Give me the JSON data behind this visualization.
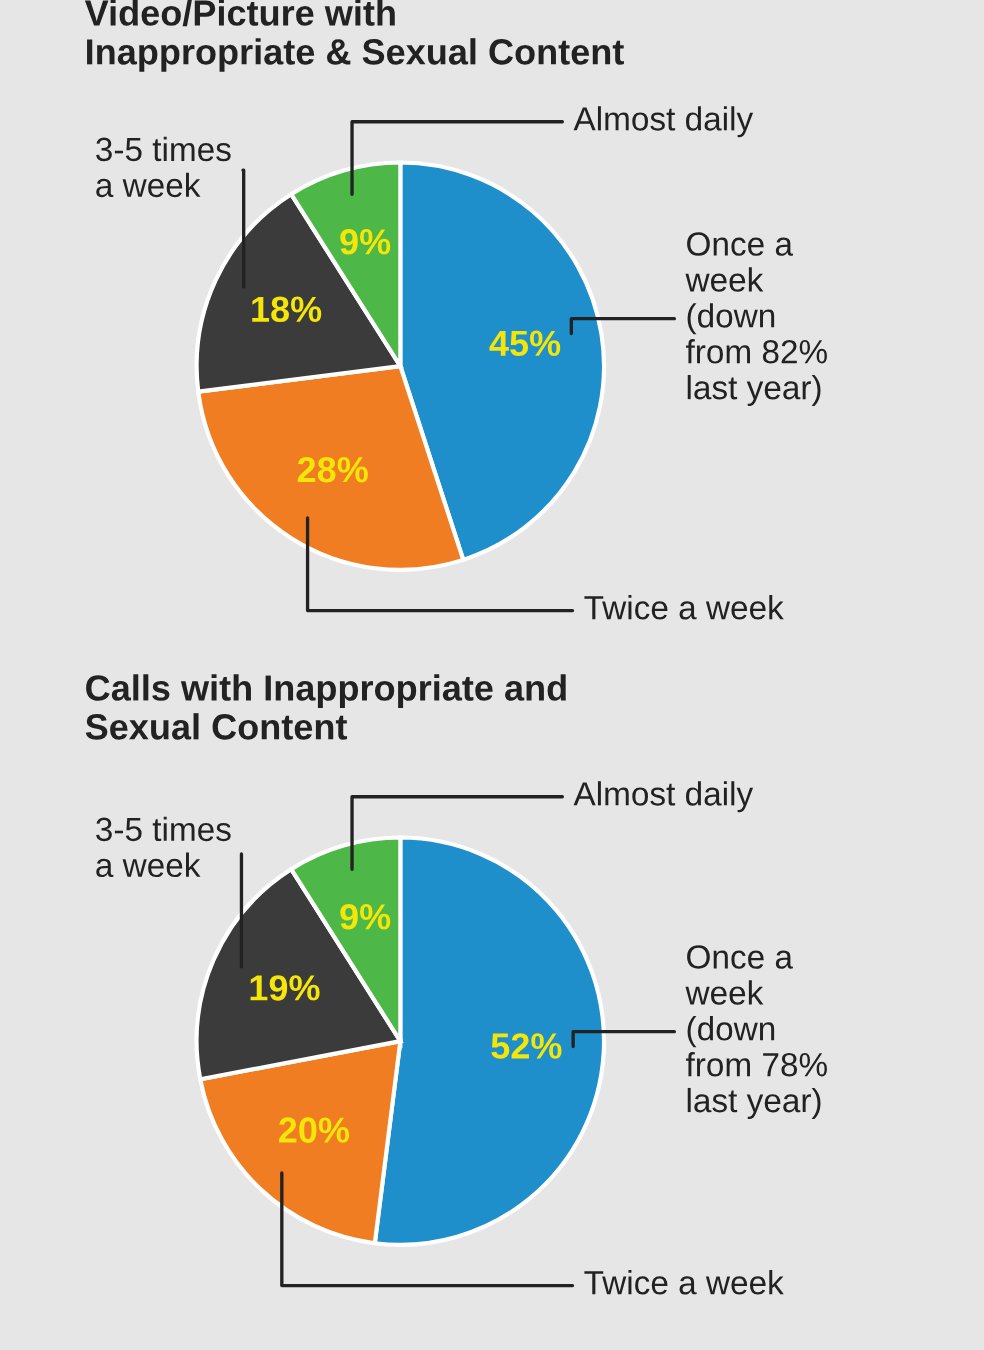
{
  "chart_data": [
    {
      "type": "pie",
      "title": "Video/Picture with\nInappropriate & Sexual Content",
      "categories": [
        "Once a\nweek\n(down\nfrom 82%\nlast year)",
        "Twice a week",
        "3-5 times\na week",
        "Almost daily"
      ],
      "values": [
        45,
        28,
        18,
        9
      ],
      "value_labels": [
        "45%",
        "28%",
        "18%",
        "9%"
      ],
      "colors": [
        "#1f8fcb",
        "#f07d22",
        "#3b3b3b",
        "#4db748"
      ]
    },
    {
      "type": "pie",
      "title": "Calls with Inappropriate and\nSexual Content",
      "categories": [
        "Once a\nweek\n(down\nfrom 78%\nlast year)",
        "Twice a week",
        "3-5 times\na week",
        "Almost daily"
      ],
      "values": [
        52,
        20,
        19,
        9
      ],
      "value_labels": [
        "52%",
        "20%",
        "19%",
        "9%"
      ],
      "colors": [
        "#1f8fcb",
        "#f07d22",
        "#3b3b3b",
        "#4db748"
      ]
    }
  ]
}
